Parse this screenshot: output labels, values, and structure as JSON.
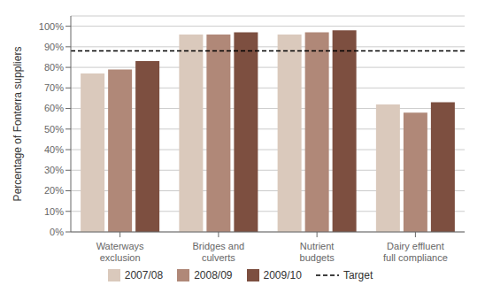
{
  "chart_data": {
    "type": "bar",
    "categories": [
      "Waterways\nexclusion",
      "Bridges and\nculverts",
      "Nutrient\nbudgets",
      "Dairy effluent\nfull compliance"
    ],
    "series": [
      {
        "name": "2007/08",
        "color": "#dac9bc",
        "values": [
          77,
          96,
          96,
          62
        ]
      },
      {
        "name": "2008/09",
        "color": "#b08878",
        "values": [
          79,
          96,
          97,
          58
        ]
      },
      {
        "name": "2009/10",
        "color": "#7d4f40",
        "values": [
          83,
          97,
          98,
          63
        ]
      }
    ],
    "target": {
      "name": "Target",
      "value": 88,
      "color": "#000000",
      "line_style": "dashed"
    },
    "ylabel": "Percentage of Fonterra suppliers",
    "ylim": [
      0,
      105
    ],
    "yticks": [
      {
        "value": 0,
        "label": "0%"
      },
      {
        "value": 10,
        "label": "10%"
      },
      {
        "value": 20,
        "label": "20%"
      },
      {
        "value": 30,
        "label": "30%"
      },
      {
        "value": 40,
        "label": "40%"
      },
      {
        "value": 50,
        "label": "50%"
      },
      {
        "value": 60,
        "label": "60%"
      },
      {
        "value": 70,
        "label": "70%"
      },
      {
        "value": 80,
        "label": "80%"
      },
      {
        "value": 90,
        "label": "90%"
      },
      {
        "value": 100,
        "label": "100%"
      }
    ],
    "grid": true,
    "legend": "bottom"
  }
}
